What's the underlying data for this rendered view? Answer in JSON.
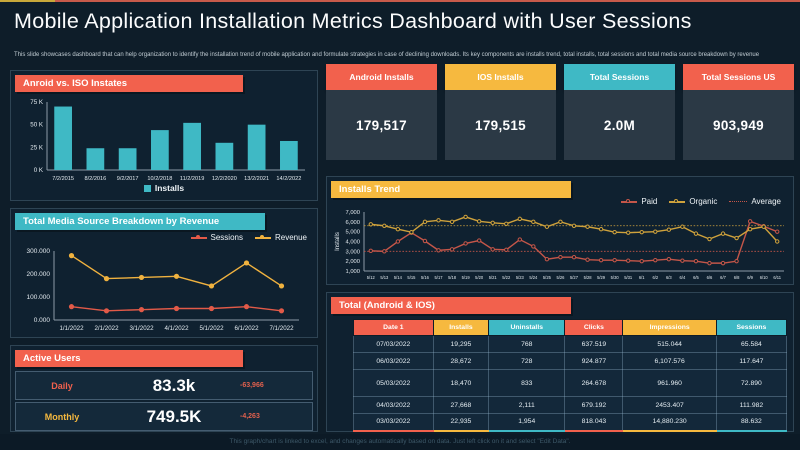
{
  "page": {
    "title": "Mobile Application Installation Metrics Dashboard with User Sessions",
    "subtitle": "This slide showcases dashboard  that can help organization  to identify the installation trend of mobile application and  formulate strategies in case of declining downloads.  Its key components are installs trend,  total installs, total sessions and total media source breakdown  by revenue",
    "footer": "This graph/chart is linked to excel, and changes automatically based on data. Just left click on it and select \"Edit Data\".",
    "colors": {
      "red": "#f2614d",
      "yellow": "#f6b93f",
      "teal": "#3fb9c5",
      "background": "#0e1d29"
    }
  },
  "kpis": [
    {
      "label": "Android Installs",
      "value": "179,517",
      "color": "#f2614d"
    },
    {
      "label": "IOS Installs",
      "value": "179,515",
      "color": "#f6b93f"
    },
    {
      "label": "Total Sessions",
      "value": "2.0M",
      "color": "#3fb9c5"
    },
    {
      "label": "Total Sessions US",
      "value": "903,949",
      "color": "#f2614d"
    }
  ],
  "active_users": {
    "title": "Active Users",
    "rows": [
      {
        "label": "Daily",
        "value": "83.3k",
        "delta": "-63,966",
        "label_color": "#f2614d"
      },
      {
        "label": "Monthly",
        "value": "749.5K",
        "delta": "-4,263",
        "label_color": "#f6b93f"
      }
    ]
  },
  "chart_data": [
    {
      "id": "bar-installs",
      "type": "bar",
      "title": "Anroid vs. ISO Instates",
      "categories": [
        "7/2/2015",
        "8/2/2016",
        "9/2/2017",
        "10/2/2018",
        "11/2/2019",
        "12/2/2020",
        "13/2/2021",
        "14/2/2022"
      ],
      "values": [
        70000,
        24000,
        24000,
        44000,
        52000,
        30000,
        50000,
        32000
      ],
      "ylim": [
        0,
        75000
      ],
      "yticks": [
        {
          "v": 0,
          "label": "0 K"
        },
        {
          "v": 25000,
          "label": "25 K"
        },
        {
          "v": 50000,
          "label": "50 K"
        },
        {
          "v": 75000,
          "label": "75 K"
        }
      ],
      "bar_color": "#3fb9c5",
      "grid": false,
      "legend": [
        {
          "label": "Installs",
          "color": "#3fb9c5"
        }
      ],
      "legend_position": "bottom-center"
    },
    {
      "id": "media-line",
      "type": "line",
      "title": "Total Media Source Breakdown by Revenue",
      "x": [
        "1/1/2022",
        "2/1/2022",
        "3/1/2022",
        "4/1/2022",
        "5/1/2022",
        "6/1/2022",
        "7/1/2022"
      ],
      "ylim": [
        0,
        300
      ],
      "yticks": [
        {
          "v": 0,
          "label": "0.000"
        },
        {
          "v": 100,
          "label": "100.000"
        },
        {
          "v": 200,
          "label": "200.000"
        },
        {
          "v": 300,
          "label": "300.000"
        }
      ],
      "grid": false,
      "legend_position": "top-right",
      "series": [
        {
          "name": "Sessions",
          "color": "#e25a48",
          "marker": "filled",
          "values": [
            58,
            40,
            45,
            50,
            50,
            58,
            40
          ]
        },
        {
          "name": "Revenue",
          "color": "#f0b23f",
          "marker": "filled",
          "values": [
            280,
            180,
            185,
            190,
            148,
            248,
            148
          ]
        }
      ]
    },
    {
      "id": "trend-line",
      "type": "line",
      "title": "Installs Trend",
      "ylabel": "Installs",
      "x": [
        "5/12",
        "5/13",
        "5/14",
        "5/15",
        "5/16",
        "5/17",
        "5/18",
        "5/19",
        "5/20",
        "5/21",
        "5/22",
        "5/23",
        "5/24",
        "5/25",
        "5/26",
        "5/27",
        "5/28",
        "5/29",
        "5/30",
        "5/31",
        "6/1",
        "6/2",
        "6/3",
        "6/4",
        "6/5",
        "6/6",
        "6/7",
        "6/8",
        "6/9",
        "6/10",
        "6/11"
      ],
      "ylim": [
        1000,
        7000
      ],
      "yticks": [
        {
          "v": 1000,
          "label": "1,000"
        },
        {
          "v": 2000,
          "label": "2,000"
        },
        {
          "v": 3000,
          "label": "3,000"
        },
        {
          "v": 4000,
          "label": "4,000"
        },
        {
          "v": 5000,
          "label": "5,000"
        },
        {
          "v": 6000,
          "label": "6,000"
        },
        {
          "v": 7000,
          "label": "7,000"
        }
      ],
      "grid": false,
      "legend_position": "top-right",
      "series": [
        {
          "name": "Paid",
          "color": "#c45649",
          "marker": "open",
          "values": [
            3050,
            3000,
            4000,
            4900,
            4050,
            3100,
            3200,
            3800,
            4100,
            3200,
            3150,
            4200,
            3500,
            2200,
            2400,
            2400,
            2150,
            2100,
            2100,
            2050,
            2000,
            2100,
            2200,
            2050,
            2000,
            1800,
            1800,
            2000,
            6050,
            5550,
            5000
          ]
        },
        {
          "name": "Organic",
          "color": "#cfa23c",
          "marker": "open",
          "values": [
            5750,
            5600,
            5250,
            4950,
            6000,
            6150,
            6000,
            6500,
            6050,
            5900,
            5800,
            6300,
            6000,
            5500,
            6000,
            5600,
            5500,
            5250,
            4950,
            4900,
            4950,
            5000,
            5200,
            5500,
            4800,
            4250,
            4800,
            4350,
            5250,
            5500,
            4000
          ]
        }
      ],
      "avg_lines": [
        {
          "label": "Average",
          "value": 3000,
          "color": "#c45649"
        },
        {
          "value": 5600,
          "color": "#cfa23c"
        }
      ]
    }
  ],
  "table": {
    "title": "Total (Android & IOS)",
    "columns": [
      {
        "label": "Date 1",
        "color": "#f2614d"
      },
      {
        "label": "Installs",
        "color": "#f6b93f"
      },
      {
        "label": "Uninstalls",
        "color": "#3fb9c5"
      },
      {
        "label": "Clicks",
        "color": "#f2614d"
      },
      {
        "label": "Impressions",
        "color": "#f6b93f"
      },
      {
        "label": "Sessions",
        "color": "#3fb9c5"
      }
    ],
    "rows": [
      [
        "07/03/2022",
        "19,295",
        "768",
        "637.519",
        "515.044",
        "65.584"
      ],
      [
        "06/03/2022",
        "28,672",
        "728",
        "924.877",
        "6,107.576",
        "117.647"
      ],
      [
        "05/03/2022",
        "18,470",
        "833",
        "264.678",
        "961.960",
        "72.890"
      ],
      [
        "04/03/2022",
        "27,668",
        "2,111",
        "679.192",
        "2453.407",
        "111.982"
      ],
      [
        "03/03/2022",
        "22,935",
        "1,954",
        "818.043",
        "14,880.230",
        "88.632"
      ]
    ]
  }
}
